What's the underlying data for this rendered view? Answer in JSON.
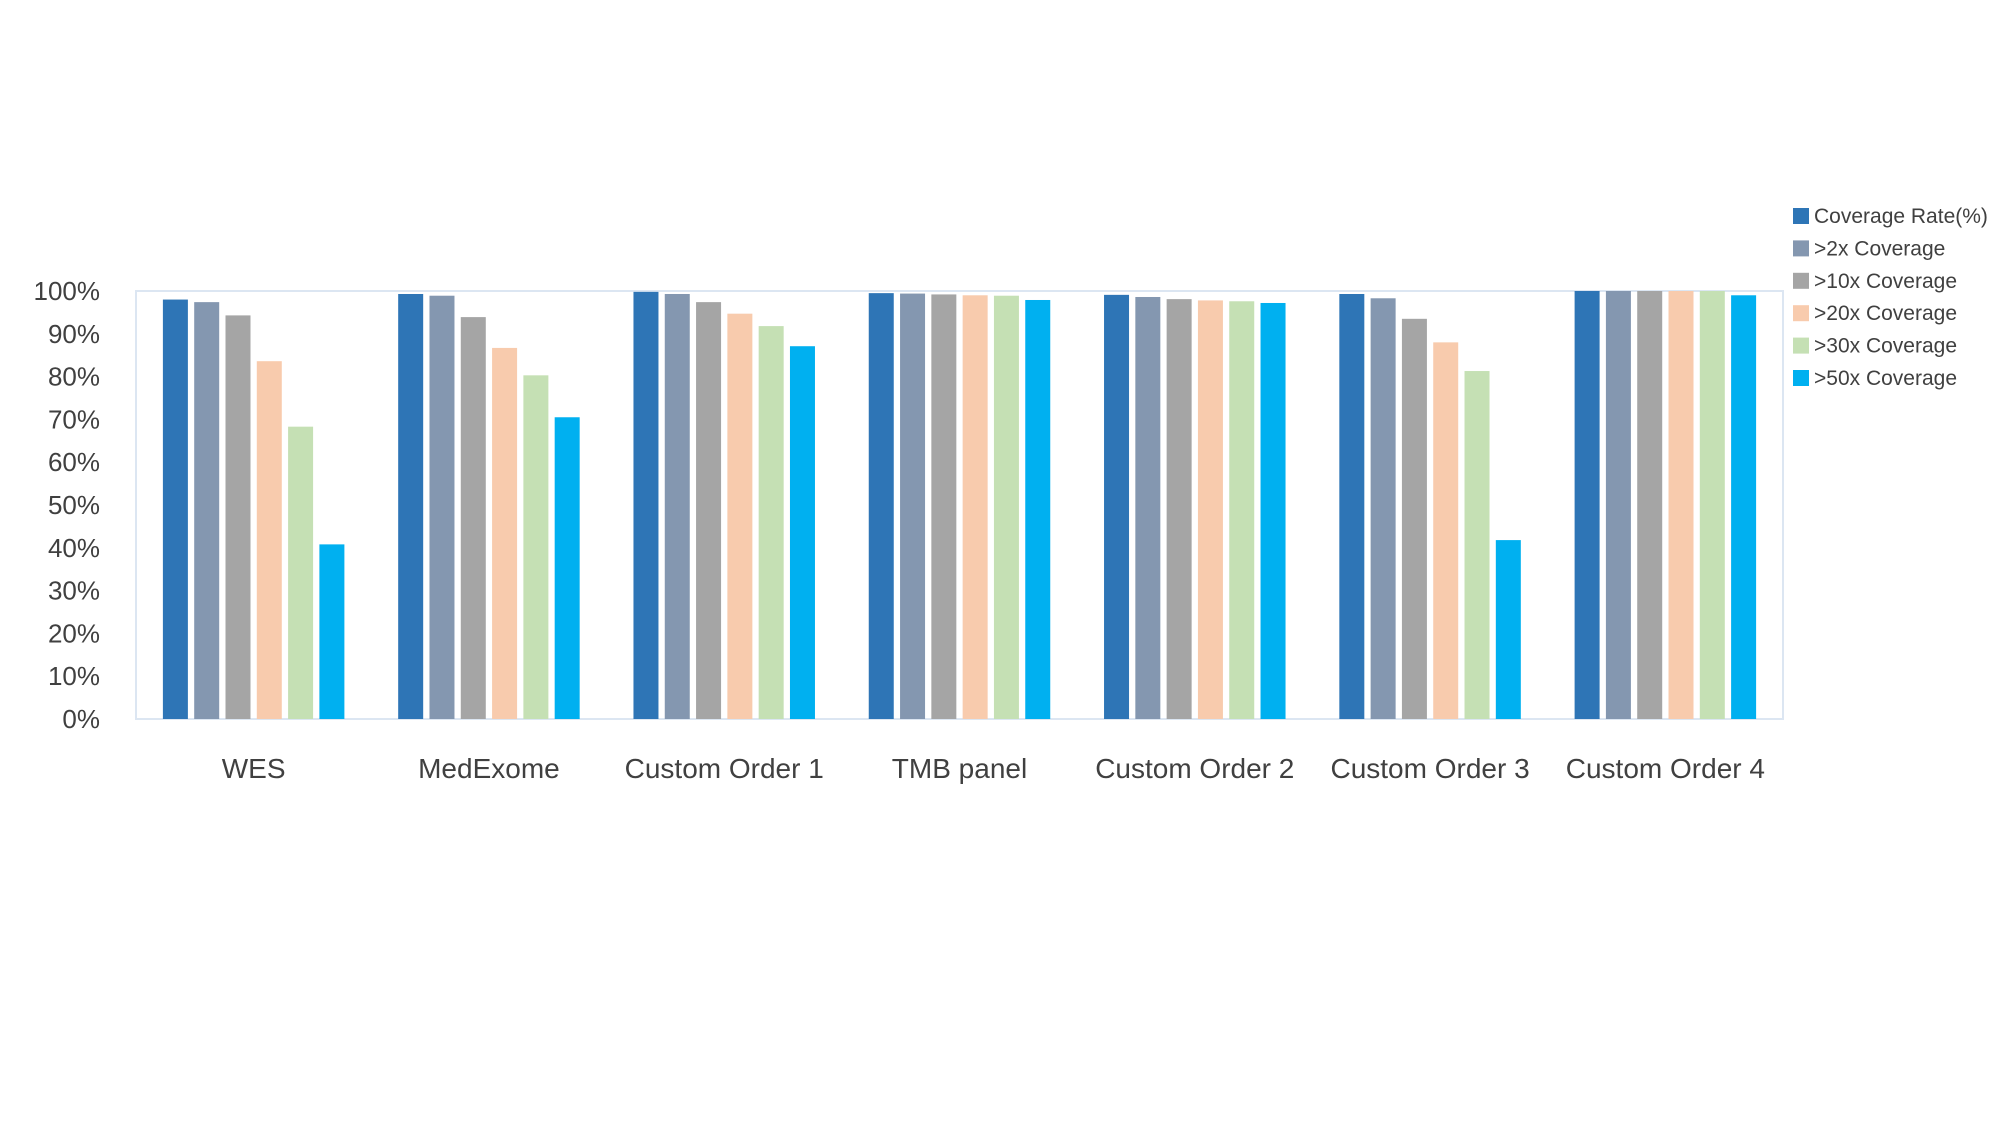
{
  "chart_data": {
    "type": "bar",
    "categories": [
      "WES",
      "MedExome",
      "Custom Order 1",
      "TMB panel",
      "Custom Order 2",
      "Custom Order 3",
      "Custom Order 4"
    ],
    "series": [
      {
        "name": "Coverage Rate(%)",
        "color": "#2E75B6",
        "values": [
          98,
          99.3,
          99.8,
          99.5,
          99.1,
          99.3,
          100
        ]
      },
      {
        "name": ">2x Coverage",
        "color": "#8497B0",
        "values": [
          97.4,
          98.9,
          99.3,
          99.4,
          98.6,
          98.3,
          100
        ]
      },
      {
        "name": ">10x Coverage",
        "color": "#A5A5A5",
        "values": [
          94.3,
          93.9,
          97.4,
          99.2,
          98.1,
          93.5,
          100
        ]
      },
      {
        "name": ">20x Coverage",
        "color": "#F8CBAD",
        "values": [
          83.6,
          86.7,
          94.7,
          99,
          97.8,
          88,
          100
        ]
      },
      {
        "name": ">30x Coverage",
        "color": "#C5E0B4",
        "values": [
          68.3,
          80.3,
          91.8,
          98.9,
          97.6,
          81.3,
          100
        ]
      },
      {
        "name": ">50x Coverage",
        "color": "#00B0F0",
        "values": [
          40.8,
          70.5,
          87.1,
          97.9,
          97.2,
          41.8,
          99
        ]
      }
    ],
    "y_ticks": [
      "0%",
      "10%",
      "20%",
      "30%",
      "40%",
      "50%",
      "60%",
      "70%",
      "80%",
      "90%",
      "100%"
    ],
    "ylim": [
      0,
      100
    ],
    "legend_position": "right",
    "grid": false
  }
}
